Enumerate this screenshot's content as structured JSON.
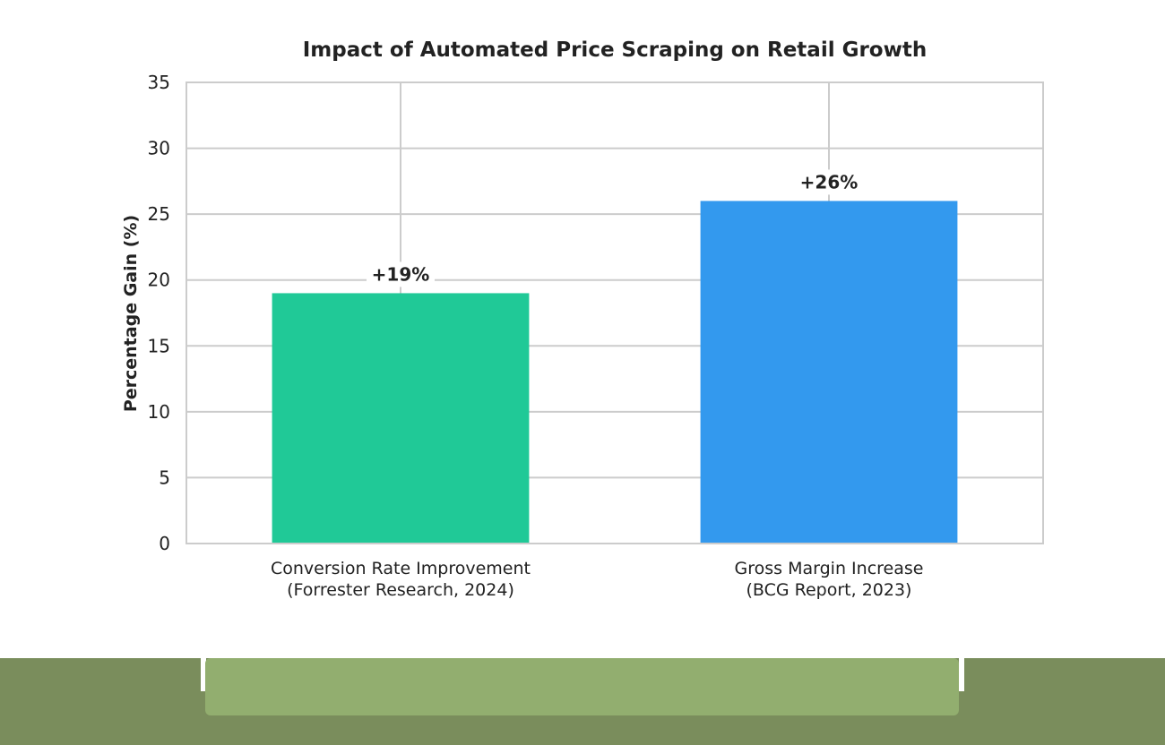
{
  "chart_data": {
    "type": "bar",
    "title": "Impact of Automated Price Scraping on Retail Growth",
    "xlabel": "",
    "ylabel": "Percentage Gain (%)",
    "ylim": [
      0,
      35
    ],
    "yticks": [
      0,
      5,
      10,
      15,
      20,
      25,
      30,
      35
    ],
    "grid": true,
    "categories": [
      [
        "Conversion Rate Improvement",
        "(Forrester Research, 2024)"
      ],
      [
        "Gross Margin Increase",
        "(BCG Report, 2023)"
      ]
    ],
    "values": [
      19,
      26
    ],
    "data_labels": [
      "+19%",
      "+26%"
    ],
    "colors": [
      "#20c997",
      "#3399ee"
    ]
  },
  "colors": {
    "grid": "#cccccc",
    "axis": "#cccccc",
    "text": "#222222",
    "footer_dark": "#7a8d5c",
    "footer_light": "#92ae6f"
  }
}
